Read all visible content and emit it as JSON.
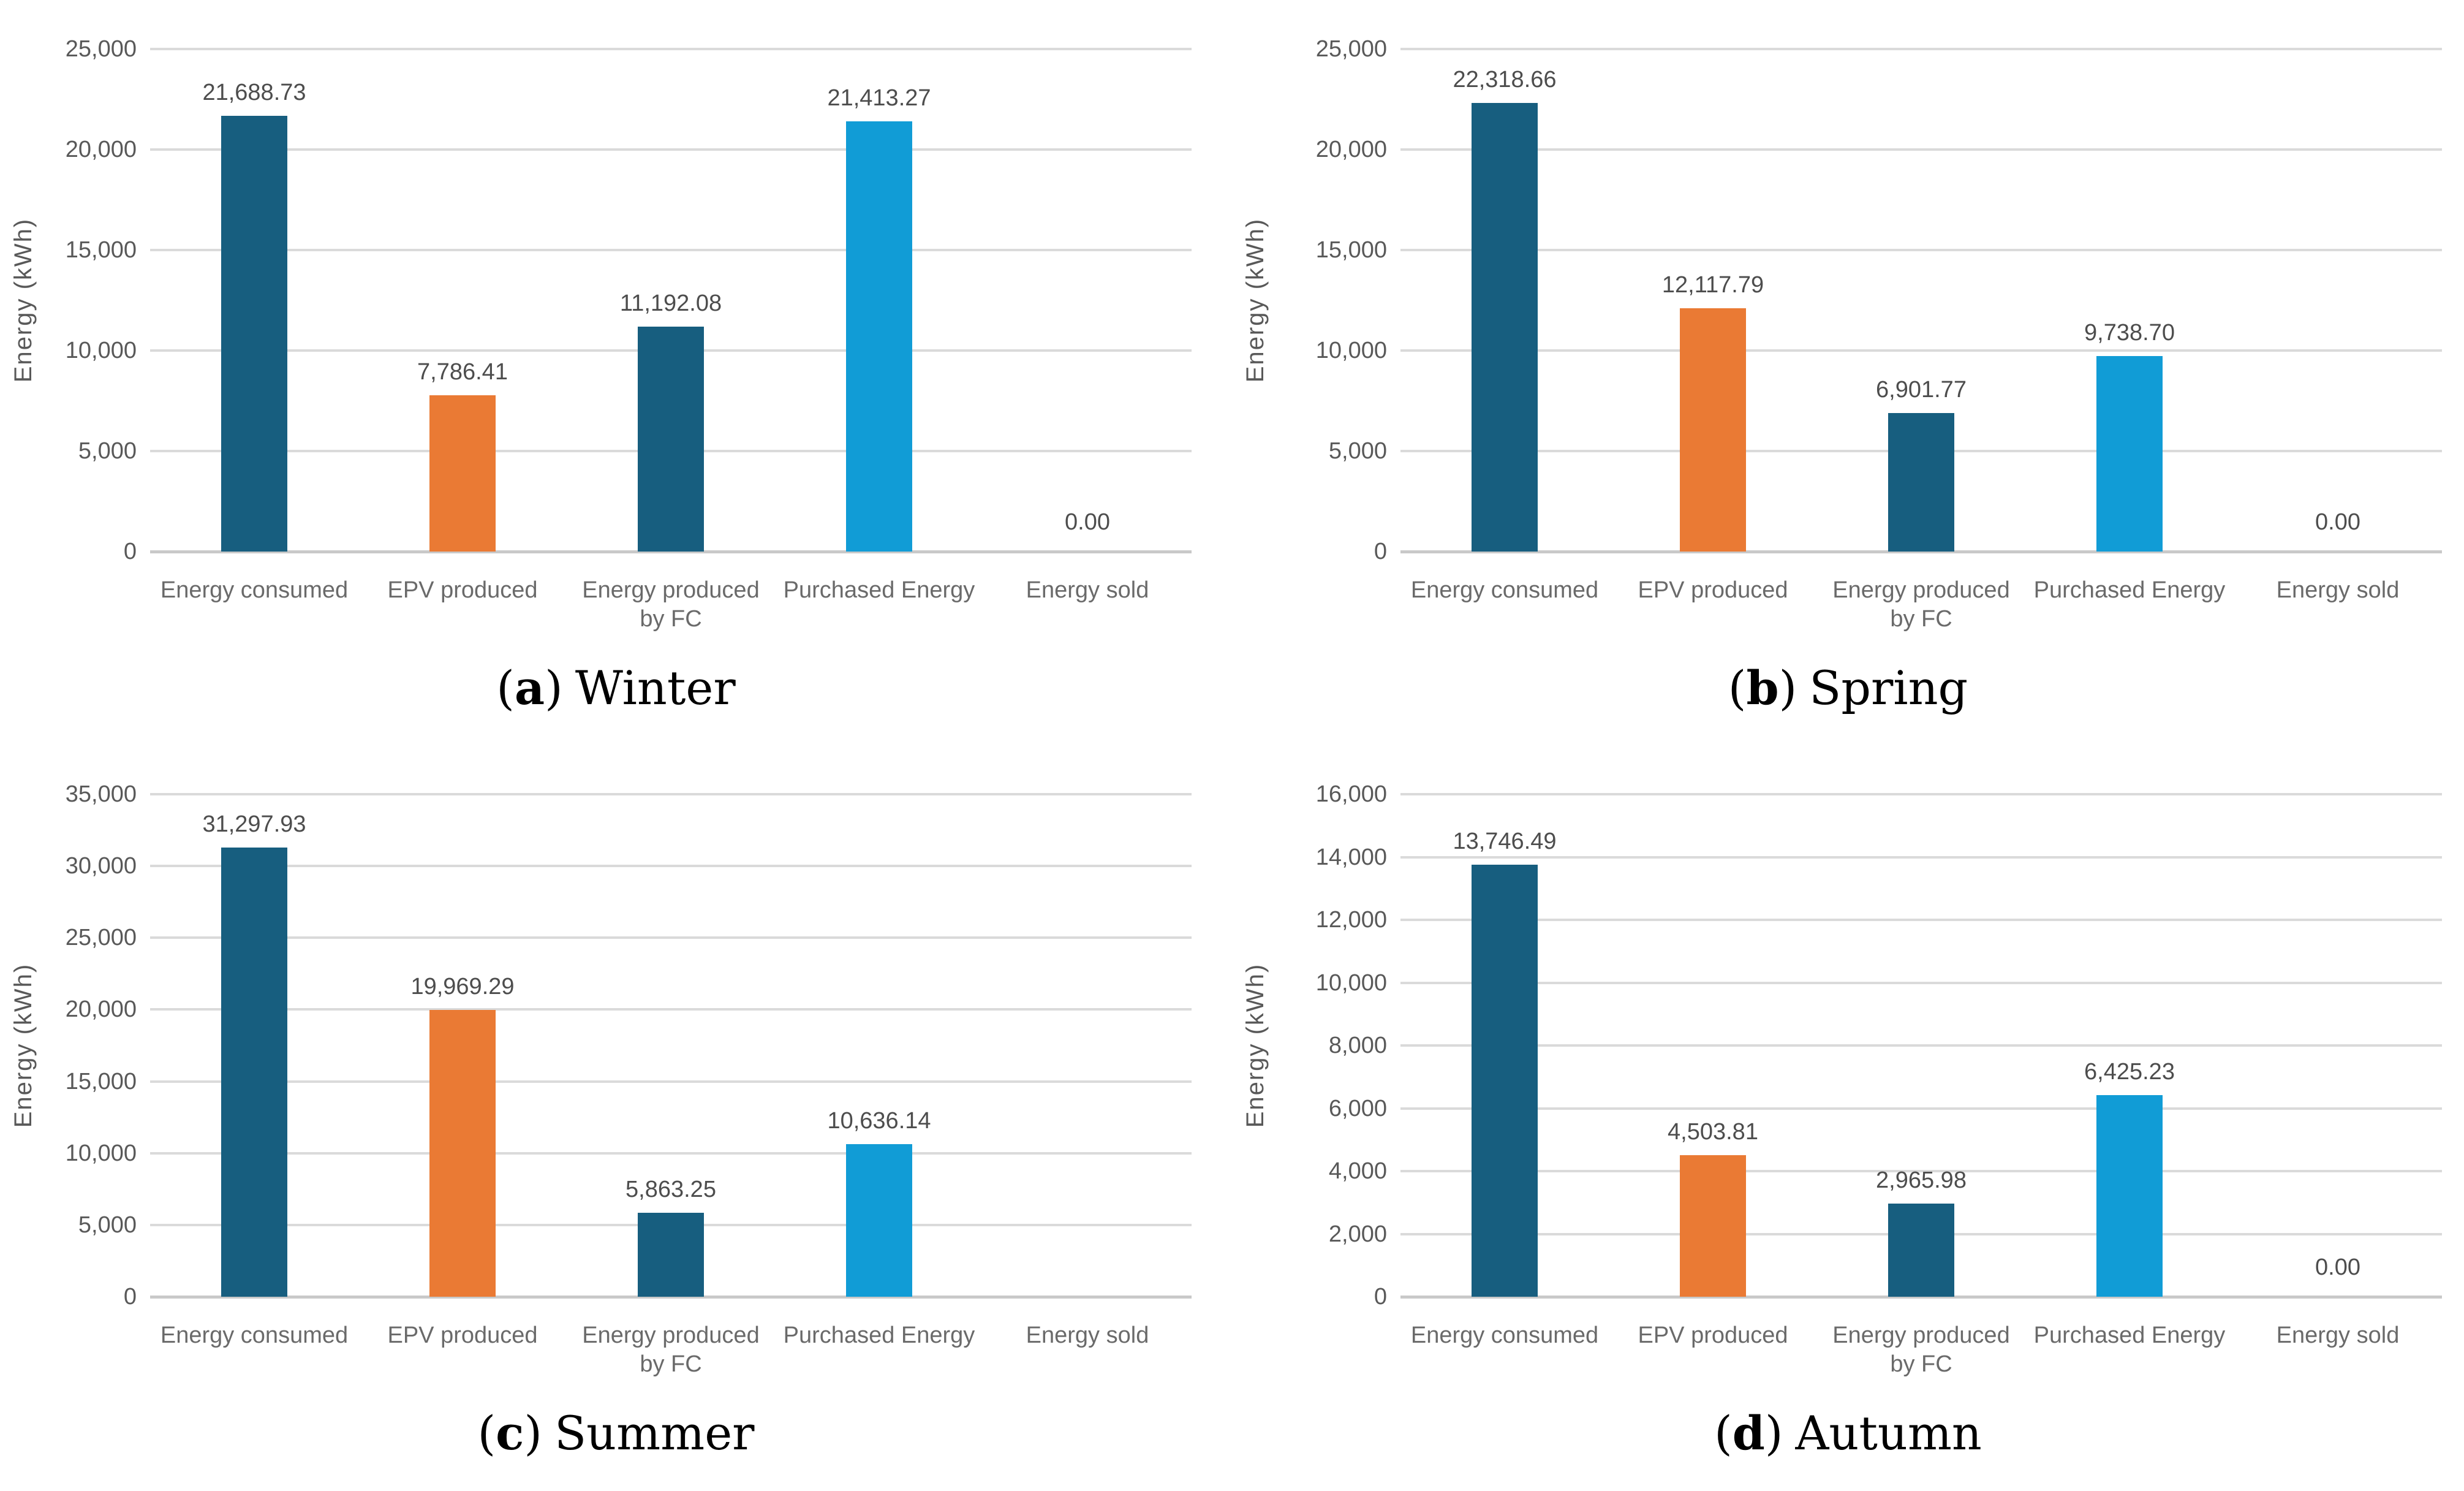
{
  "figure": {
    "ylabel": "Energy (kWh)",
    "categories": [
      "Energy consumed",
      "EPV produced",
      "Energy produced by FC",
      "Purchased Energy",
      "Energy sold"
    ]
  },
  "colors": {
    "dark_blue": "#175E7F",
    "orange": "#EA7A34",
    "light_blue": "#119CD6",
    "gridline": "#DADADA",
    "axis_line": "#C9C9C9",
    "tick_text": "#595959",
    "category_text": "#6A6A6A",
    "value_text": "#4D4D4D",
    "caption_text": "#000000"
  },
  "chart_data": [
    {
      "type": "bar",
      "caption_open": "(",
      "caption_letter": "a",
      "caption_close": ")",
      "caption_season": "Winter",
      "ylabel": "Energy (kWh)",
      "categories": [
        "Energy consumed",
        "EPV produced",
        "Energy produced by FC",
        "Purchased Energy",
        "Energy sold"
      ],
      "values": [
        21688.73,
        7786.41,
        11192.08,
        21413.27,
        0
      ],
      "value_labels": [
        "21,688.73",
        "7,786.41",
        "11,192.08",
        "21,413.27",
        "0.00"
      ],
      "bar_colors": [
        "#175E7F",
        "#EA7A34",
        "#175E7F",
        "#119CD6",
        "#119CD6"
      ],
      "ylim": [
        0,
        25000
      ],
      "ymax": 25000,
      "ytick_step": 5000,
      "ytick_values": [
        25000,
        20000,
        15000,
        10000,
        5000,
        0
      ],
      "ytick_labels": [
        "25,000",
        "20,000",
        "15,000",
        "10,000",
        "5,000",
        "0"
      ],
      "grid": true,
      "legend": false
    },
    {
      "type": "bar",
      "caption_open": "(",
      "caption_letter": "b",
      "caption_close": ")",
      "caption_season": "Spring",
      "ylabel": "Energy (kWh)",
      "categories": [
        "Energy consumed",
        "EPV produced",
        "Energy produced by FC",
        "Purchased Energy",
        "Energy sold"
      ],
      "values": [
        22318.66,
        12117.79,
        6901.77,
        9738.7,
        0
      ],
      "value_labels": [
        "22,318.66",
        "12,117.79",
        "6,901.77",
        "9,738.70",
        "0.00"
      ],
      "bar_colors": [
        "#175E7F",
        "#EA7A34",
        "#175E7F",
        "#119CD6",
        "#119CD6"
      ],
      "ylim": [
        0,
        25000
      ],
      "ymax": 25000,
      "ytick_step": 5000,
      "ytick_values": [
        25000,
        20000,
        15000,
        10000,
        5000,
        0
      ],
      "ytick_labels": [
        "25,000",
        "20,000",
        "15,000",
        "10,000",
        "5,000",
        "0"
      ],
      "grid": true,
      "legend": false
    },
    {
      "type": "bar",
      "caption_open": "(",
      "caption_letter": "c",
      "caption_close": ")",
      "caption_season": "Summer",
      "ylabel": "Energy (kWh)",
      "categories": [
        "Energy consumed",
        "EPV produced",
        "Energy produced by FC",
        "Purchased Energy",
        "Energy sold"
      ],
      "values": [
        31297.93,
        19969.29,
        5863.25,
        10636.14,
        0
      ],
      "value_labels": [
        "31,297.93",
        "19,969.29",
        "5,863.25",
        "10,636.14",
        ""
      ],
      "bar_colors": [
        "#175E7F",
        "#EA7A34",
        "#175E7F",
        "#119CD6",
        "#119CD6"
      ],
      "ylim": [
        0,
        35000
      ],
      "ymax": 35000,
      "ytick_step": 5000,
      "ytick_values": [
        35000,
        30000,
        25000,
        20000,
        15000,
        10000,
        5000,
        0
      ],
      "ytick_labels": [
        "35,000",
        "30,000",
        "25,000",
        "20,000",
        "15,000",
        "10,000",
        "5,000",
        "0"
      ],
      "grid": true,
      "legend": false
    },
    {
      "type": "bar",
      "caption_open": "(",
      "caption_letter": "d",
      "caption_close": ")",
      "caption_season": "Autumn",
      "ylabel": "Energy (kWh)",
      "categories": [
        "Energy consumed",
        "EPV produced",
        "Energy produced by FC",
        "Purchased Energy",
        "Energy sold"
      ],
      "values": [
        13746.49,
        4503.81,
        2965.98,
        6425.23,
        0
      ],
      "value_labels": [
        "13,746.49",
        "4,503.81",
        "2,965.98",
        "6,425.23",
        "0.00"
      ],
      "bar_colors": [
        "#175E7F",
        "#EA7A34",
        "#175E7F",
        "#119CD6",
        "#119CD6"
      ],
      "ylim": [
        0,
        16000
      ],
      "ymax": 16000,
      "ytick_step": 2000,
      "ytick_values": [
        16000,
        14000,
        12000,
        10000,
        8000,
        6000,
        4000,
        2000,
        0
      ],
      "ytick_labels": [
        "16,000",
        "14,000",
        "12,000",
        "10,000",
        "8,000",
        "6,000",
        "4,000",
        "2,000",
        "0"
      ],
      "grid": true,
      "legend": false
    }
  ]
}
